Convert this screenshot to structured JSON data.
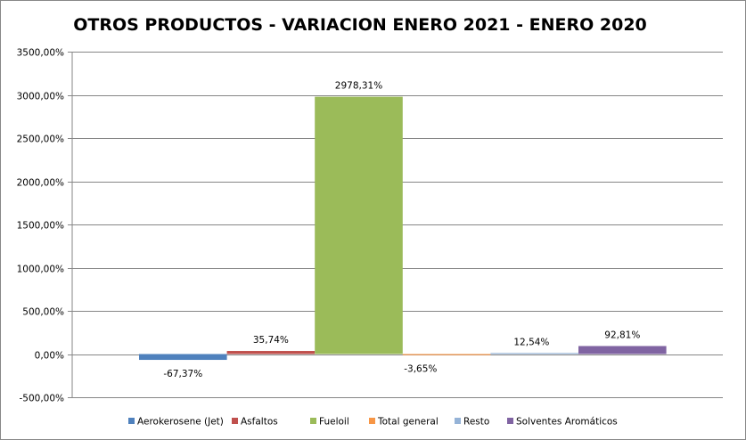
{
  "chart_data": {
    "type": "bar",
    "title": "OTROS PRODUCTOS - VARIACION ENERO 2021 - ENERO 2020",
    "xlabel": "",
    "ylabel": "",
    "ylim": [
      -500,
      3500
    ],
    "yticks": [
      -500,
      0,
      500,
      1000,
      1500,
      2000,
      2500,
      3000,
      3500
    ],
    "ytick_labels": [
      "-500,00%",
      "0,00%",
      "500,00%",
      "1000,00%",
      "1500,00%",
      "2000,00%",
      "2500,00%",
      "3000,00%",
      "3500,00%"
    ],
    "grid": true,
    "legend_position": "bottom",
    "series": [
      {
        "name": "Aerokerosene (Jet)",
        "value": -67.37,
        "label": "-67,37%",
        "color": "#4F81BD"
      },
      {
        "name": "Asfaltos",
        "value": 35.74,
        "label": "35,74%",
        "color": "#C0504D"
      },
      {
        "name": "Fueloil",
        "value": 2978.31,
        "label": "2978,31%",
        "color": "#9BBB59"
      },
      {
        "name": "Total general",
        "value": -3.65,
        "label": "-3,65%",
        "color": "#F79646"
      },
      {
        "name": "Resto",
        "value": 12.54,
        "label": "12,54%",
        "color": "#95B3D7"
      },
      {
        "name": "Solventes Aromáticos",
        "value": 92.81,
        "label": "92,81%",
        "color": "#8064A2"
      }
    ]
  }
}
